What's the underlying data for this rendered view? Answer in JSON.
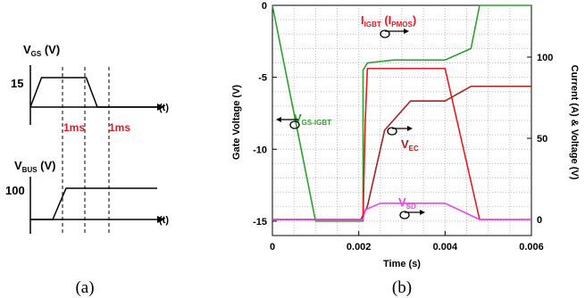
{
  "panel_a": {
    "caption": "(a)",
    "vgs": {
      "label_main": "V",
      "label_sub": "GS",
      "label_unit": " (V)",
      "level": "15",
      "t_label": "(t)"
    },
    "vbus": {
      "label_main": "V",
      "label_sub": "BUS",
      "label_unit": " (V)",
      "level": "100",
      "t_label": "(t)"
    },
    "durations": [
      "1ms",
      "1ms"
    ]
  },
  "panel_b": {
    "caption": "(b)",
    "annotations": {
      "igbt": {
        "main": "I",
        "sub1": "IGBT",
        "mid": " (I",
        "sub2": "PMOS",
        "end": ")"
      },
      "vgs_igbt": {
        "main": "V",
        "sub": "GS-IGBT"
      },
      "vec": {
        "main": "V",
        "sub": "EC"
      },
      "vsd": {
        "main": "V",
        "sub": "SD"
      }
    }
  },
  "colors": {
    "green": "#2ca02c",
    "red": "#e8191f",
    "darkred": "#a8231f",
    "magenta": "#ee44ee",
    "highlight": "#e8191f"
  },
  "chart_data": [
    {
      "type": "line",
      "title": "",
      "xlabel": "(t)",
      "ylabel": "VGS (V)",
      "series": [
        {
          "name": "VGS",
          "x": [
            0,
            0.5,
            2.5,
            3.0
          ],
          "y": [
            0,
            15,
            15,
            0
          ]
        }
      ]
    },
    {
      "type": "line",
      "title": "",
      "xlabel": "(t)",
      "ylabel": "VBUS (V)",
      "series": [
        {
          "name": "VBUS",
          "x": [
            0,
            1.0,
            1.6,
            3.6
          ],
          "y": [
            0,
            0,
            100,
            100
          ]
        }
      ]
    },
    {
      "type": "line",
      "xlabel": "Time (s)",
      "ylabel": "Gate Voltage (V)",
      "ylabel_right": "Current (A) & Voltage (V)",
      "xlim": [
        0,
        0.006
      ],
      "ylim": [
        -16,
        0
      ],
      "ylim_right": [
        0,
        100
      ],
      "xticks": [
        "0",
        "0.002",
        "0.004",
        "0.006"
      ],
      "yticks": [
        "0",
        "-5",
        "-10",
        "-15"
      ],
      "yticks_right": [
        "100",
        "50",
        "0"
      ],
      "grid": true,
      "series": [
        {
          "name": "VGS-IGBT",
          "axis": "left",
          "x": [
            0,
            0.001,
            0.0021,
            0.0021,
            0.0022,
            0.0028,
            0.004,
            0.0046,
            0.0048,
            0.006
          ],
          "y": [
            0,
            -15,
            -15,
            -4.5,
            -4.0,
            -3.8,
            -3.8,
            -3.0,
            0,
            0
          ]
        },
        {
          "name": "IGBT (IPMOS)",
          "axis": "right",
          "x": [
            0,
            0.0021,
            0.00215,
            0.0022,
            0.004,
            0.0048,
            0.006
          ],
          "y": [
            0,
            0,
            60,
            93,
            93,
            0,
            0
          ]
        },
        {
          "name": "VEC",
          "axis": "right",
          "x": [
            0,
            0.00205,
            0.0022,
            0.0026,
            0.0032,
            0.004,
            0.0046,
            0.006
          ],
          "y": [
            0,
            0,
            8,
            55,
            73,
            73,
            82,
            82
          ]
        },
        {
          "name": "VSD",
          "axis": "right",
          "x": [
            0,
            0.0021,
            0.00215,
            0.0025,
            0.004,
            0.0048,
            0.006
          ],
          "y": [
            0,
            0,
            6,
            10,
            10,
            0,
            0
          ]
        }
      ]
    }
  ]
}
